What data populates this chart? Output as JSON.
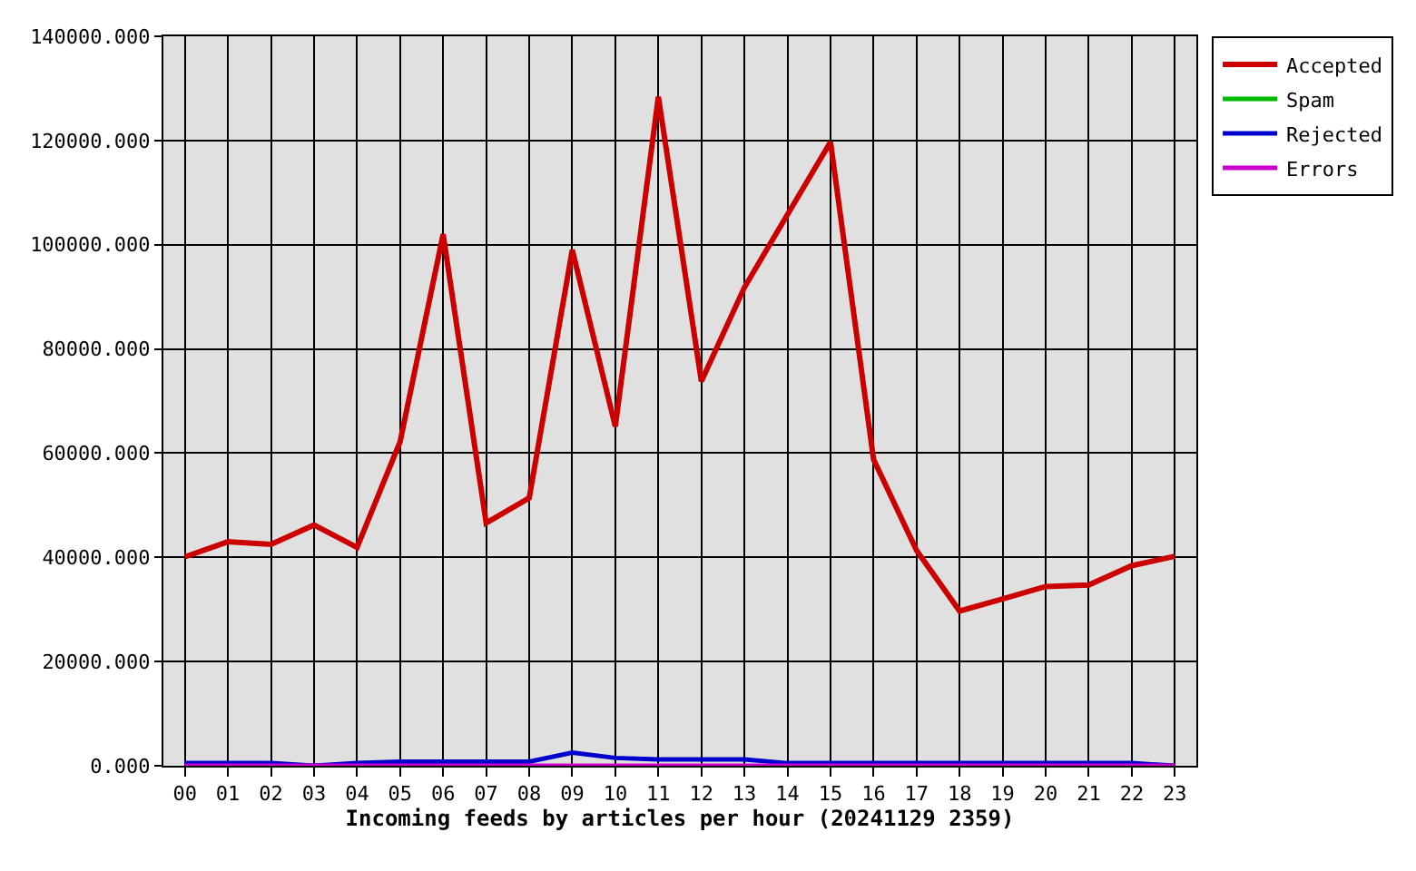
{
  "chart_data": {
    "type": "line",
    "xlabel": "Incoming feeds by articles per hour (20241129 2359)",
    "categories": [
      "00",
      "01",
      "02",
      "03",
      "04",
      "05",
      "06",
      "07",
      "08",
      "09",
      "10",
      "11",
      "12",
      "13",
      "14",
      "15",
      "16",
      "17",
      "18",
      "19",
      "20",
      "21",
      "22",
      "23"
    ],
    "series": [
      {
        "name": "Accepted",
        "color": "#cc0000",
        "values": [
          40100,
          43000,
          42500,
          46200,
          41900,
          62200,
          102000,
          46600,
          51400,
          99000,
          65100,
          128400,
          73800,
          91800,
          105800,
          119700,
          58800,
          41300,
          29700,
          32000,
          34400,
          34700,
          38400,
          40200
        ]
      },
      {
        "name": "Spam",
        "color": "#00bb00",
        "values": [
          null,
          null,
          null,
          null,
          null,
          null,
          null,
          null,
          null,
          null,
          null,
          null,
          null,
          null,
          null,
          null,
          null,
          null,
          null,
          null,
          null,
          null,
          null,
          null
        ]
      },
      {
        "name": "Rejected",
        "color": "#0000cc",
        "values": [
          500,
          500,
          500,
          0,
          500,
          800,
          800,
          800,
          800,
          2500,
          1500,
          1200,
          1200,
          1200,
          500,
          500,
          500,
          500,
          500,
          500,
          500,
          500,
          500,
          0
        ]
      },
      {
        "name": "Errors",
        "color": "#cc00cc",
        "values": [
          0,
          0,
          0,
          0,
          0,
          0,
          0,
          0,
          0,
          0,
          0,
          0,
          0,
          0,
          0,
          0,
          0,
          0,
          0,
          0,
          0,
          0,
          0,
          0
        ]
      }
    ],
    "ylim": [
      0,
      140000
    ],
    "yticks": [
      {
        "value": 0,
        "label": "0.000"
      },
      {
        "value": 20000,
        "label": "20000.000"
      },
      {
        "value": 40000,
        "label": "40000.000"
      },
      {
        "value": 60000,
        "label": "60000.000"
      },
      {
        "value": 80000,
        "label": "80000.000"
      },
      {
        "value": 100000,
        "label": "100000.000"
      },
      {
        "value": 120000,
        "label": "120000.000"
      },
      {
        "value": 140000,
        "label": "140000.000"
      }
    ],
    "grid": true,
    "legend": "top right",
    "marker": "none",
    "line_style": "solid"
  }
}
